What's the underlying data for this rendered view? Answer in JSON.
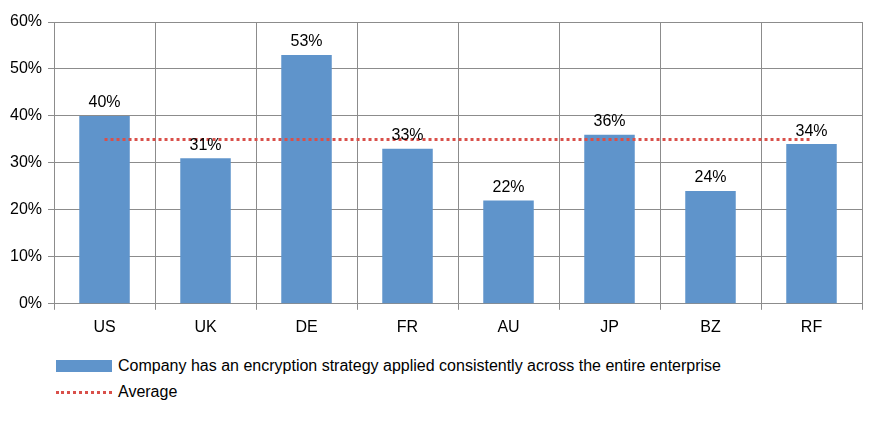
{
  "chart_data": {
    "type": "bar",
    "categories": [
      "US",
      "UK",
      "DE",
      "FR",
      "AU",
      "JP",
      "BZ",
      "RF"
    ],
    "series": [
      {
        "name": "Company has an encryption strategy applied consistently across the entire enterprise",
        "type": "bar",
        "color": "#5f94cb",
        "values": [
          40,
          31,
          53,
          33,
          22,
          36,
          24,
          34
        ],
        "value_labels": [
          "40%",
          "31%",
          "53%",
          "33%",
          "22%",
          "36%",
          "24%",
          "34%"
        ]
      },
      {
        "name": "Average",
        "type": "line",
        "color": "#d9504a",
        "line_style": "dotted",
        "marker": "none",
        "values": [
          35,
          35,
          35,
          35,
          35,
          35,
          35,
          35
        ]
      }
    ],
    "ylim": [
      0,
      60
    ],
    "yticks": [
      {
        "value": 0,
        "label": "0%"
      },
      {
        "value": 10,
        "label": "10%"
      },
      {
        "value": 20,
        "label": "20%"
      },
      {
        "value": 30,
        "label": "30%"
      },
      {
        "value": 40,
        "label": "40%"
      },
      {
        "value": 50,
        "label": "50%"
      },
      {
        "value": 60,
        "label": "60%"
      }
    ],
    "grid": true,
    "data_labels": true,
    "legend": "bottom"
  }
}
